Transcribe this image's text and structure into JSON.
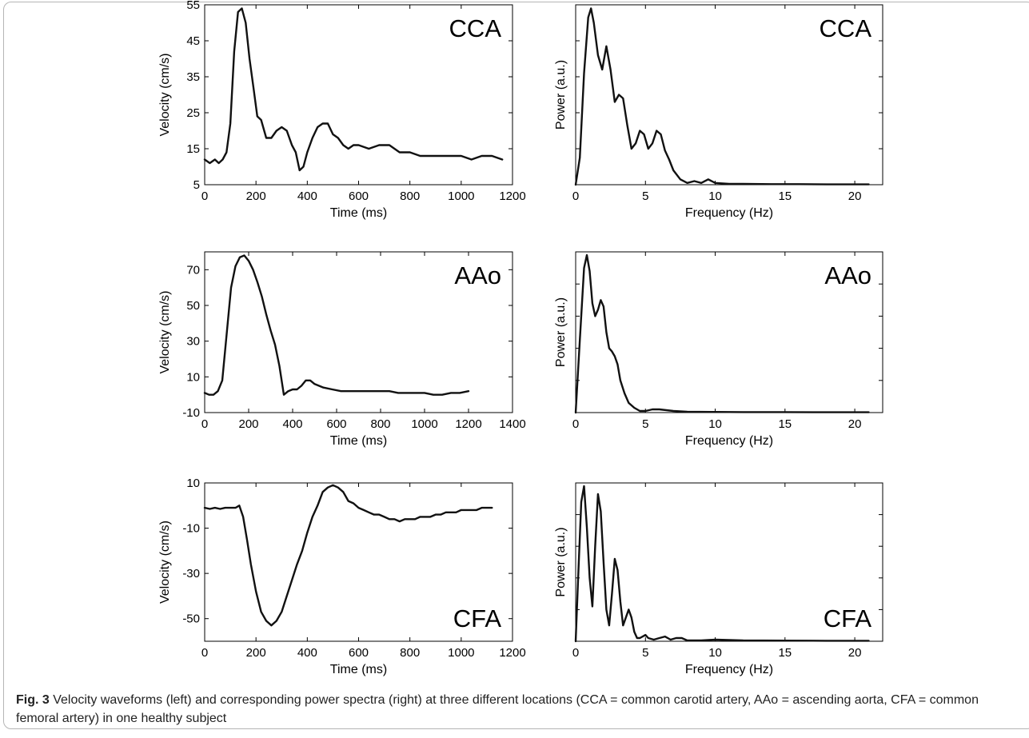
{
  "caption": {
    "label": "Fig. 3",
    "text": "Velocity waveforms (left) and corresponding power spectra (right) at three different locations (CCA = common carotid artery, AAo = ascending aorta, CFA = common femoral artery) in one healthy subject"
  },
  "colors": {
    "line": "#111111",
    "axis": "#000000"
  },
  "chart_data": [
    {
      "id": "cca-velocity",
      "type": "line",
      "annotation": "CCA",
      "xlabel": "Time (ms)",
      "ylabel": "Velocity (cm/s)",
      "xlim": [
        0,
        1200
      ],
      "ylim": [
        5,
        55
      ],
      "xticks": [
        0,
        200,
        400,
        600,
        800,
        1000,
        1200
      ],
      "yticks": [
        5,
        15,
        25,
        35,
        45,
        55
      ],
      "series": [
        {
          "x": [
            0,
            20,
            40,
            55,
            70,
            85,
            100,
            115,
            130,
            145,
            160,
            175,
            190,
            205,
            220,
            240,
            260,
            280,
            300,
            320,
            340,
            355,
            370,
            385,
            400,
            420,
            440,
            460,
            480,
            500,
            520,
            540,
            560,
            580,
            600,
            640,
            680,
            720,
            760,
            800,
            840,
            880,
            920,
            960,
            1000,
            1040,
            1080,
            1120,
            1160
          ],
          "y": [
            12,
            11,
            12,
            11,
            12,
            14,
            22,
            42,
            53,
            54,
            50,
            40,
            32,
            24,
            23,
            18,
            18,
            20,
            21,
            20,
            16,
            14,
            9,
            10,
            14,
            18,
            21,
            22,
            22,
            19,
            18,
            16,
            15,
            16,
            16,
            15,
            16,
            16,
            14,
            14,
            13,
            13,
            13,
            13,
            13,
            12,
            13,
            13,
            12
          ]
        }
      ]
    },
    {
      "id": "cca-spectrum",
      "type": "line",
      "annotation": "CCA",
      "xlabel": "Frequency (Hz)",
      "ylabel": "Power (a.u.)",
      "xlim": [
        0,
        22
      ],
      "ylim": [
        0,
        1
      ],
      "xticks": [
        0,
        5,
        10,
        15,
        20
      ],
      "yticks": [],
      "series": [
        {
          "x": [
            0,
            0.3,
            0.6,
            0.9,
            1.1,
            1.3,
            1.6,
            1.9,
            2.2,
            2.5,
            2.8,
            3.1,
            3.4,
            3.7,
            4.0,
            4.3,
            4.6,
            4.9,
            5.2,
            5.5,
            5.8,
            6.1,
            6.4,
            6.7,
            7.0,
            7.5,
            8.0,
            8.5,
            9.0,
            9.5,
            10.0,
            11,
            12,
            14,
            16,
            18,
            20,
            21
          ],
          "y": [
            0,
            0.15,
            0.62,
            0.93,
            0.98,
            0.9,
            0.72,
            0.64,
            0.77,
            0.64,
            0.46,
            0.5,
            0.48,
            0.33,
            0.2,
            0.23,
            0.3,
            0.28,
            0.2,
            0.23,
            0.3,
            0.28,
            0.19,
            0.14,
            0.08,
            0.03,
            0.01,
            0.02,
            0.01,
            0.03,
            0.01,
            0.005,
            0.005,
            0.003,
            0.003,
            0.002,
            0.002,
            0.002
          ]
        }
      ]
    },
    {
      "id": "aao-velocity",
      "type": "line",
      "annotation": "AAo",
      "xlabel": "Time (ms)",
      "ylabel": "Velocity (cm/s)",
      "xlim": [
        0,
        1400
      ],
      "ylim": [
        -10,
        80
      ],
      "xticks": [
        0,
        200,
        400,
        600,
        800,
        1000,
        1200,
        1400
      ],
      "yticks": [
        -10,
        10,
        30,
        50,
        70
      ],
      "series": [
        {
          "x": [
            0,
            20,
            40,
            60,
            80,
            100,
            120,
            140,
            160,
            180,
            200,
            220,
            240,
            260,
            280,
            300,
            320,
            340,
            360,
            380,
            400,
            420,
            440,
            460,
            480,
            500,
            540,
            580,
            620,
            660,
            700,
            760,
            800,
            840,
            880,
            920,
            960,
            1000,
            1040,
            1080,
            1120,
            1160,
            1200
          ],
          "y": [
            1,
            0,
            0,
            2,
            8,
            34,
            60,
            72,
            77,
            78,
            75,
            70,
            63,
            55,
            45,
            36,
            28,
            16,
            0,
            2,
            3,
            3,
            5,
            8,
            8,
            6,
            4,
            3,
            2,
            2,
            2,
            2,
            2,
            2,
            1,
            1,
            1,
            1,
            0,
            0,
            1,
            1,
            2
          ]
        }
      ]
    },
    {
      "id": "aao-spectrum",
      "type": "line",
      "annotation": "AAo",
      "xlabel": "Frequency (Hz)",
      "ylabel": "Power (a.u.)",
      "xlim": [
        0,
        22
      ],
      "ylim": [
        0,
        1
      ],
      "xticks": [
        0,
        5,
        10,
        15,
        20
      ],
      "yticks": [],
      "series": [
        {
          "x": [
            0,
            0.3,
            0.6,
            0.8,
            1.0,
            1.2,
            1.4,
            1.6,
            1.8,
            2.0,
            2.2,
            2.4,
            2.6,
            2.8,
            3.0,
            3.2,
            3.5,
            3.8,
            4.2,
            4.6,
            5.0,
            5.5,
            6.0,
            7.0,
            8.0,
            10,
            12,
            15,
            18,
            21
          ],
          "y": [
            0,
            0.45,
            0.9,
            0.98,
            0.88,
            0.68,
            0.6,
            0.64,
            0.7,
            0.66,
            0.5,
            0.4,
            0.38,
            0.35,
            0.3,
            0.2,
            0.12,
            0.06,
            0.03,
            0.01,
            0.01,
            0.02,
            0.02,
            0.01,
            0.005,
            0.004,
            0.003,
            0.003,
            0.002,
            0.002
          ]
        }
      ]
    },
    {
      "id": "cfa-velocity",
      "type": "line",
      "annotation": "CFA",
      "xlabel": "Time (ms)",
      "ylabel": "Velocity (cm/s)",
      "xlim": [
        0,
        1200
      ],
      "ylim": [
        -60,
        10
      ],
      "xticks": [
        0,
        200,
        400,
        600,
        800,
        1000,
        1200
      ],
      "yticks": [
        -50,
        -30,
        -10,
        10
      ],
      "series": [
        {
          "x": [
            0,
            20,
            40,
            60,
            80,
            100,
            120,
            135,
            150,
            165,
            180,
            200,
            220,
            240,
            260,
            280,
            300,
            320,
            340,
            360,
            380,
            400,
            420,
            440,
            460,
            480,
            500,
            520,
            540,
            560,
            580,
            600,
            620,
            640,
            660,
            680,
            700,
            720,
            740,
            760,
            780,
            800,
            820,
            840,
            860,
            880,
            900,
            920,
            940,
            960,
            980,
            1000,
            1020,
            1040,
            1060,
            1080,
            1100,
            1120
          ],
          "y": [
            -1,
            -1.5,
            -1,
            -1.5,
            -1,
            -1,
            -1,
            0,
            -5,
            -15,
            -26,
            -38,
            -47,
            -51,
            -53,
            -51,
            -47,
            -40,
            -33,
            -26,
            -20,
            -12,
            -5,
            0,
            6,
            8,
            9,
            8,
            6,
            2,
            1,
            -1,
            -2,
            -3,
            -4,
            -4,
            -5,
            -6,
            -6,
            -7,
            -6,
            -6,
            -6,
            -5,
            -5,
            -5,
            -4,
            -4,
            -3,
            -3,
            -3,
            -2,
            -2,
            -2,
            -2,
            -1,
            -1,
            -1
          ]
        }
      ]
    },
    {
      "id": "cfa-spectrum",
      "type": "line",
      "annotation": "CFA",
      "xlabel": "Frequency (Hz)",
      "ylabel": "Power (a.u.)",
      "xlim": [
        0,
        22
      ],
      "ylim": [
        0,
        1
      ],
      "xticks": [
        0,
        5,
        10,
        15,
        20
      ],
      "yticks": [],
      "series": [
        {
          "x": [
            0,
            0.2,
            0.4,
            0.6,
            0.8,
            1.0,
            1.2,
            1.4,
            1.6,
            1.8,
            2.0,
            2.2,
            2.4,
            2.6,
            2.8,
            3.0,
            3.2,
            3.4,
            3.6,
            3.8,
            4.0,
            4.2,
            4.4,
            4.6,
            4.8,
            5.0,
            5.2,
            5.6,
            6.0,
            6.4,
            6.8,
            7.2,
            7.6,
            8.0,
            9.0,
            10,
            12,
            15,
            18,
            21
          ],
          "y": [
            0,
            0.45,
            0.88,
            0.98,
            0.72,
            0.4,
            0.22,
            0.6,
            0.93,
            0.82,
            0.5,
            0.2,
            0.1,
            0.3,
            0.52,
            0.45,
            0.25,
            0.1,
            0.15,
            0.2,
            0.15,
            0.06,
            0.02,
            0.02,
            0.03,
            0.04,
            0.02,
            0.01,
            0.02,
            0.03,
            0.01,
            0.02,
            0.02,
            0.005,
            0.005,
            0.01,
            0.005,
            0.004,
            0.003,
            0.003
          ]
        }
      ]
    }
  ]
}
